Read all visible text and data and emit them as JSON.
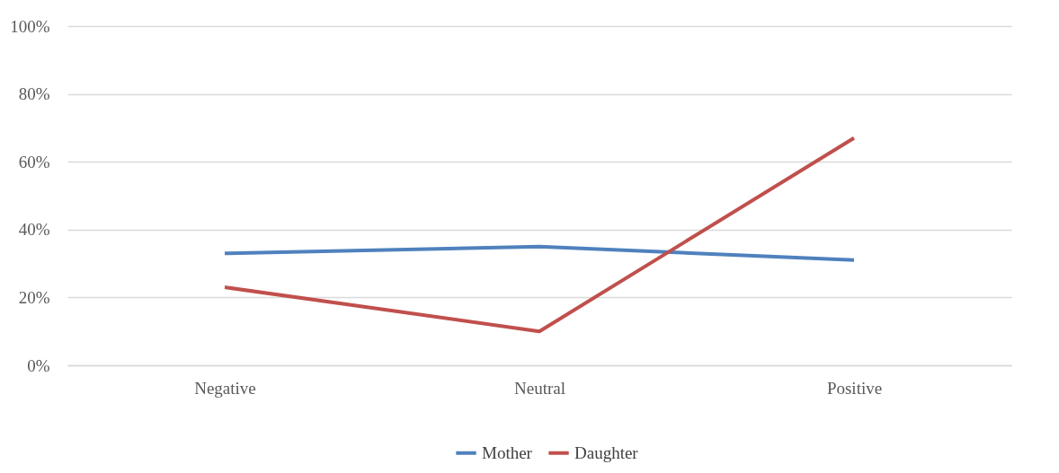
{
  "chart_data": {
    "type": "line",
    "categories": [
      "Negative",
      "Neutral",
      "Positive"
    ],
    "series": [
      {
        "name": "Mother",
        "color": "#4f81bd",
        "values": [
          33,
          35,
          31
        ]
      },
      {
        "name": "Daughter",
        "color": "#c0504d",
        "values": [
          23,
          10,
          67
        ]
      }
    ],
    "ylim": [
      0,
      100
    ],
    "yticks": [
      {
        "value": 0,
        "label": "0%"
      },
      {
        "value": 20,
        "label": "20%"
      },
      {
        "value": 40,
        "label": "40%"
      },
      {
        "value": 60,
        "label": "60%"
      },
      {
        "value": 80,
        "label": "80%"
      },
      {
        "value": 100,
        "label": "100%"
      }
    ],
    "grid": "y",
    "legend": "bottom",
    "marker": "none",
    "line_style": "solid"
  }
}
